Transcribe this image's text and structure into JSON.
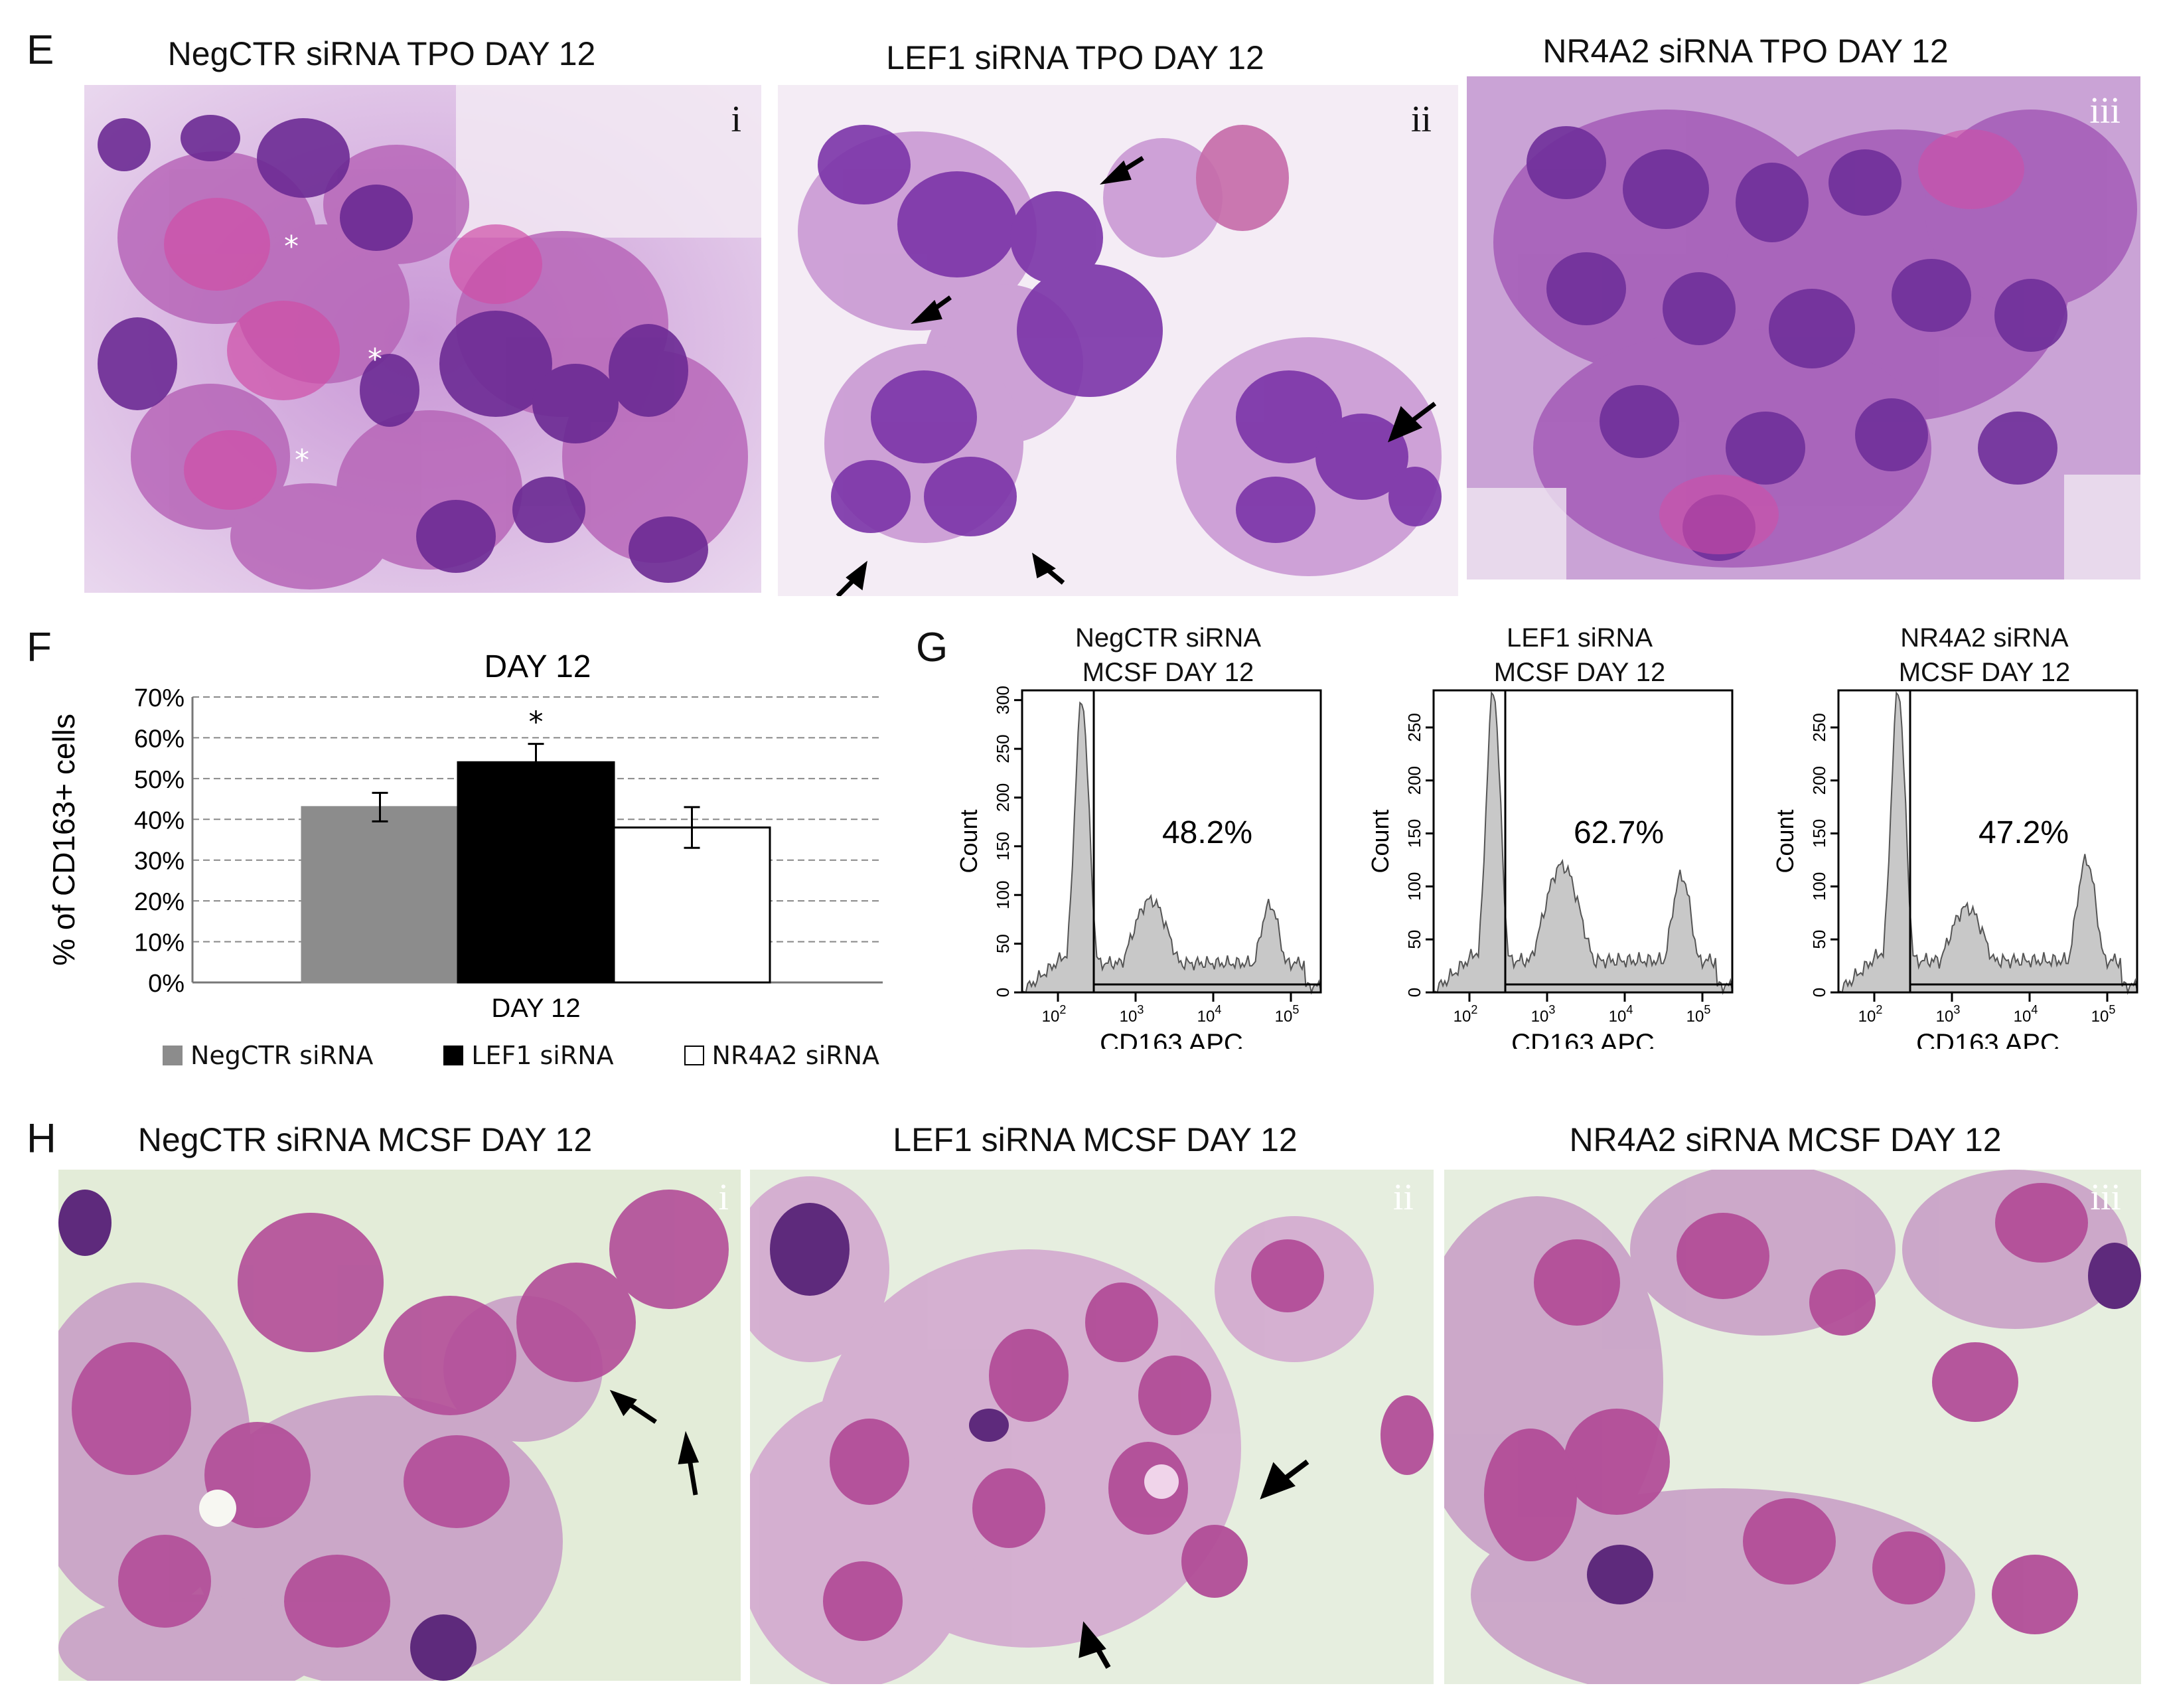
{
  "panels": {
    "E": {
      "letter": "E",
      "images": [
        {
          "title": "NegCTR siRNA TPO DAY 12",
          "label": "i",
          "asterisks": [
            "*",
            "*",
            "*"
          ]
        },
        {
          "title": "LEF1 siRNA TPO DAY 12",
          "label": "ii"
        },
        {
          "title": "NR4A2 siRNA TPO DAY 12",
          "label": "iii"
        }
      ]
    },
    "F": {
      "letter": "F"
    },
    "G": {
      "letter": "G"
    },
    "H": {
      "letter": "H",
      "images": [
        {
          "title": "NegCTR siRNA MCSF DAY 12",
          "label": "i"
        },
        {
          "title": "LEF1 siRNA MCSF DAY 12",
          "label": "ii"
        },
        {
          "title": "NR4A2 siRNA MCSF DAY 12",
          "label": "iii"
        }
      ]
    }
  },
  "colors": {
    "negctr": "#8c8c8c",
    "lef1": "#000000",
    "nr4a2": "#ffffff",
    "stain_purple": "#8a3fb3",
    "stain_pink": "#c46aa6"
  },
  "chart_data": [
    {
      "type": "bar",
      "title": "DAY 12",
      "ylabel": "% of CD163+ cells",
      "xlabel": "DAY 12",
      "ylim": [
        0,
        70
      ],
      "yticks": [
        "0%",
        "10%",
        "20%",
        "30%",
        "40%",
        "50%",
        "60%",
        "70%"
      ],
      "grid": true,
      "legend_placement": "bottom",
      "series": [
        {
          "name": "NegCTR siRNA",
          "value": 43,
          "error": 3.5
        },
        {
          "name": "LEF1 siRNA",
          "value": 54,
          "error": 4.5,
          "annotation": "*"
        },
        {
          "name": "NR4A2 siRNA",
          "value": 38,
          "error": 5
        }
      ]
    },
    {
      "type": "area",
      "title_lines": [
        "NegCTR siRNA",
        "MCSF DAY 12"
      ],
      "xlabel": "CD163 APC",
      "ylabel": "Count",
      "yticks": [
        "0",
        "50",
        "100",
        "150",
        "200",
        "250",
        "300"
      ],
      "ylim": [
        0,
        310
      ],
      "xscale": "log",
      "gate_percent": "48.2%",
      "peaks": [
        300,
        95,
        90
      ]
    },
    {
      "type": "area",
      "title_lines": [
        "LEF1 siRNA",
        "MCSF DAY 12"
      ],
      "xlabel": "CD163 APC",
      "ylabel": "Count",
      "yticks": [
        "0",
        "50",
        "100",
        "150",
        "200",
        "250"
      ],
      "ylim": [
        0,
        285
      ],
      "xscale": "log",
      "gate_percent": "62.7%",
      "peaks": [
        285,
        120,
        110
      ]
    },
    {
      "type": "area",
      "title_lines": [
        "NR4A2 siRNA",
        "MCSF DAY 12"
      ],
      "xlabel": "CD163 APC",
      "ylabel": "Count",
      "yticks": [
        "0",
        "50",
        "100",
        "150",
        "200",
        "250"
      ],
      "ylim": [
        0,
        285
      ],
      "xscale": "log",
      "gate_percent": "47.2%",
      "peaks": [
        285,
        80,
        125
      ]
    }
  ]
}
